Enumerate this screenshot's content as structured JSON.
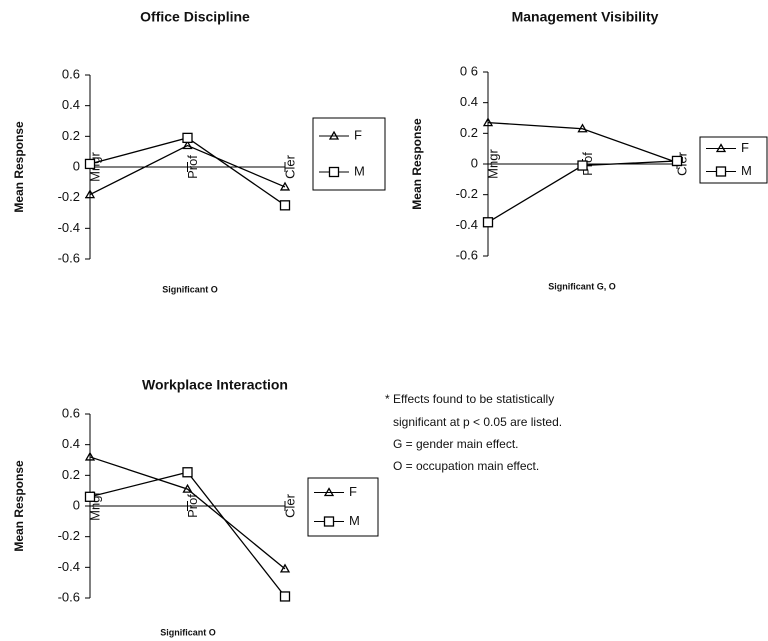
{
  "chart_data": [
    {
      "type": "line",
      "title": "Office Discipline",
      "subtitle": "Significant O",
      "y_label": "Mean Response",
      "categories": [
        "Mngr",
        "Prof",
        "Cler"
      ],
      "series": [
        {
          "name": "F",
          "color": "#000000",
          "marker": "triangle",
          "values": [
            -0.18,
            0.14,
            -0.13
          ]
        },
        {
          "name": "M",
          "color": "#000000",
          "marker": "square",
          "values": [
            0.02,
            0.19,
            -0.25
          ]
        }
      ],
      "ylim": [
        -0.6,
        0.6
      ],
      "yticks": [
        0.6,
        0.4,
        0.2,
        0,
        -0.2,
        -0.4,
        -0.6
      ],
      "grid": false,
      "legend": "right"
    },
    {
      "type": "line",
      "title": "Management Visibility",
      "subtitle": "Significant G, O",
      "y_label": "Mean Response",
      "categories": [
        "Mngr",
        "Prof",
        "Cler"
      ],
      "series": [
        {
          "name": "F",
          "color": "#000000",
          "marker": "triangle",
          "values": [
            0.27,
            0.23,
            0.01
          ]
        },
        {
          "name": "M",
          "color": "#000000",
          "marker": "square",
          "values": [
            -0.38,
            -0.01,
            0.02
          ]
        }
      ],
      "ylim": [
        -0.6,
        0.6
      ],
      "yticks": [
        {
          "value": 0.6,
          "label": "0 6"
        },
        0.4,
        0.2,
        0,
        -0.2,
        -0.4,
        -0.6
      ],
      "grid": false,
      "legend": "right"
    },
    {
      "type": "line",
      "title": "Workplace Interaction",
      "subtitle": "Significant O",
      "y_label": "Mean Response",
      "categories": [
        "Mngr",
        "Prof",
        "Cler"
      ],
      "series": [
        {
          "name": "F",
          "color": "#000000",
          "marker": "triangle",
          "values": [
            0.32,
            0.11,
            -0.41
          ]
        },
        {
          "name": "M",
          "color": "#000000",
          "marker": "square",
          "values": [
            0.06,
            0.22,
            -0.59
          ]
        }
      ],
      "ylim": [
        -0.6,
        0.6
      ],
      "yticks": [
        0.6,
        0.4,
        0.2,
        0,
        -0.2,
        -0.4,
        -0.6
      ],
      "grid": false,
      "legend": "right"
    }
  ],
  "note": [
    "* Effects found to be statistically",
    "significant at p < 0.05 are listed.",
    "G = gender main effect.",
    "O = occupation main effect."
  ]
}
